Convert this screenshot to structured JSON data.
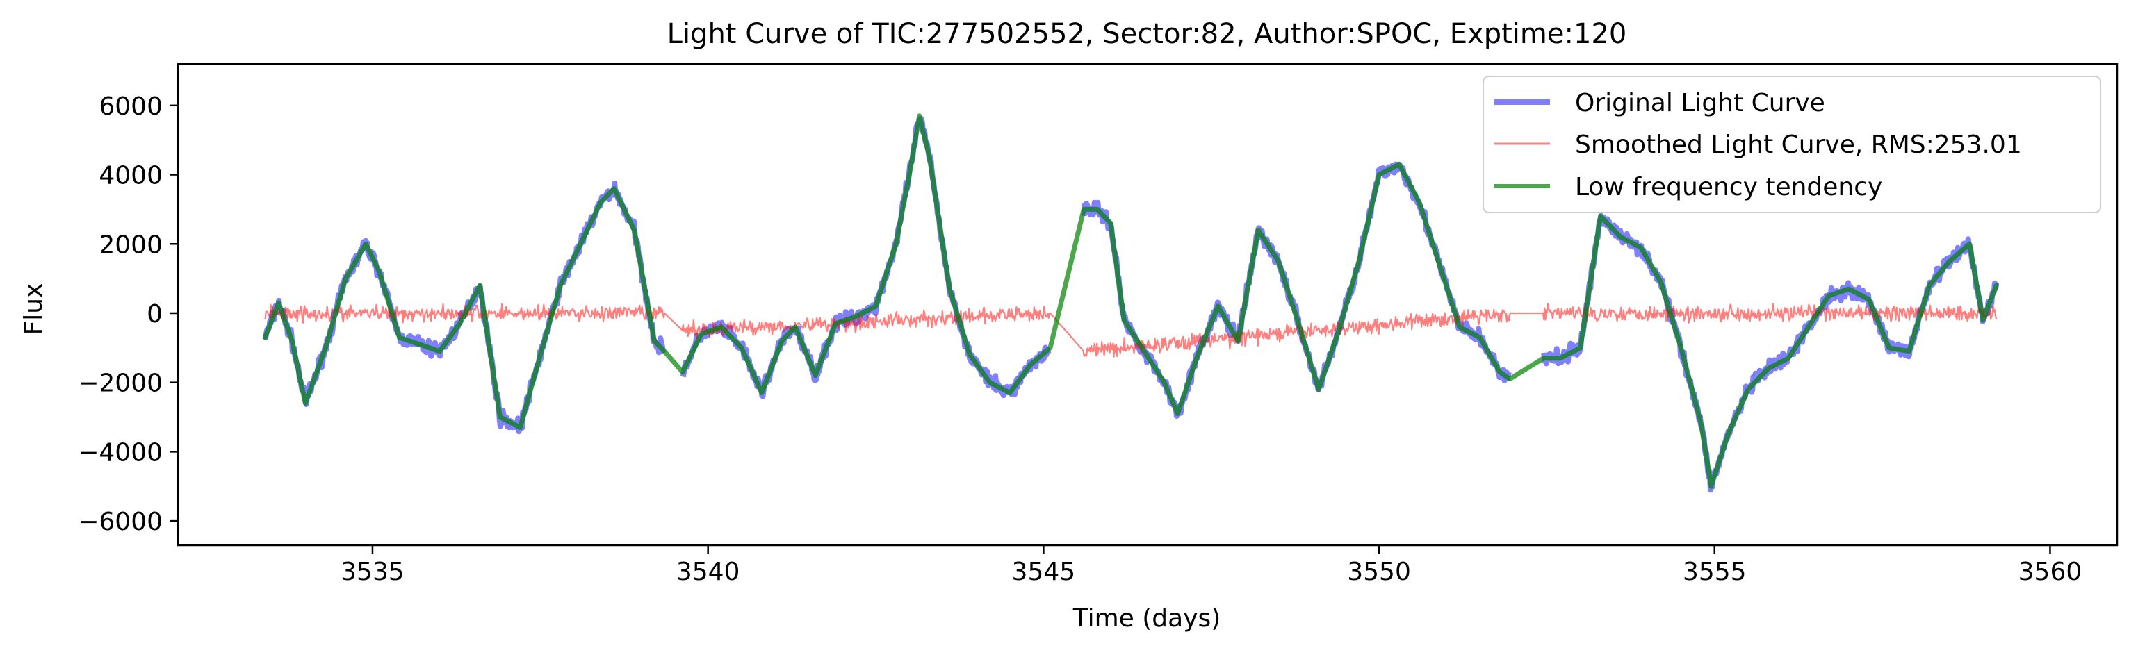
{
  "chart_data": {
    "type": "line",
    "title": "Light Curve of TIC:277502552, Sector:82, Author:SPOC, Exptime:120",
    "xlabel": "Time (days)",
    "ylabel": "Flux",
    "xlim": [
      3532.1,
      3561.0
    ],
    "ylim": [
      -6700,
      7200
    ],
    "x_ticks": [
      3535,
      3540,
      3545,
      3550,
      3555,
      3560
    ],
    "y_ticks": [
      -6000,
      -4000,
      -2000,
      0,
      2000,
      4000,
      6000
    ],
    "x_tick_labels": [
      "3535",
      "3540",
      "3545",
      "3550",
      "3555",
      "3560"
    ],
    "y_tick_labels": [
      "−6000",
      "−4000",
      "−2000",
      "0",
      "2000",
      "4000",
      "6000"
    ],
    "grid": false,
    "legend_position": "top-right",
    "gaps": [
      [
        3539.35,
        3539.62
      ],
      [
        3545.1,
        3545.6
      ],
      [
        3551.95,
        3552.45
      ]
    ],
    "series": [
      {
        "name": "Original Light Curve",
        "color": "#0000ff",
        "alpha": 0.5,
        "style": "thick-noisy",
        "amplitude_noise": 300,
        "x": [
          3533.4,
          3533.6,
          3533.8,
          3534.0,
          3534.3,
          3534.6,
          3534.9,
          3535.1,
          3535.4,
          3535.7,
          3536.0,
          3536.3,
          3536.6,
          3536.9,
          3537.2,
          3537.5,
          3537.8,
          3538.1,
          3538.4,
          3538.6,
          3538.9,
          3539.2,
          3539.35,
          3539.62,
          3539.9,
          3540.2,
          3540.5,
          3540.8,
          3541.1,
          3541.3,
          3541.6,
          3541.9,
          3542.2,
          3542.5,
          3542.8,
          3543.0,
          3543.15,
          3543.3,
          3543.6,
          3543.9,
          3544.2,
          3544.5,
          3544.8,
          3545.1,
          3545.6,
          3545.8,
          3546.0,
          3546.2,
          3546.5,
          3546.8,
          3547.0,
          3547.3,
          3547.6,
          3547.9,
          3548.2,
          3548.5,
          3548.8,
          3549.1,
          3549.4,
          3549.7,
          3550.0,
          3550.3,
          3550.6,
          3550.9,
          3551.2,
          3551.5,
          3551.8,
          3551.95,
          3552.45,
          3552.7,
          3553.0,
          3553.3,
          3553.6,
          3553.9,
          3554.2,
          3554.5,
          3554.8,
          3554.95,
          3555.2,
          3555.5,
          3555.8,
          3556.1,
          3556.4,
          3556.7,
          3557.0,
          3557.3,
          3557.6,
          3557.9,
          3558.2,
          3558.5,
          3558.8,
          3559.0,
          3559.2
        ],
        "y": [
          -700,
          300,
          -800,
          -2600,
          -1000,
          1000,
          2000,
          1200,
          -700,
          -900,
          -1100,
          -300,
          800,
          -3000,
          -3300,
          -1200,
          800,
          2000,
          3200,
          3600,
          2400,
          -800,
          -1100,
          -1700,
          -600,
          -400,
          -1000,
          -2300,
          -800,
          -400,
          -1800,
          -300,
          -100,
          200,
          2000,
          4000,
          5700,
          4500,
          700,
          -1200,
          -2000,
          -2300,
          -1500,
          -1000,
          3000,
          3000,
          2600,
          -200,
          -1100,
          -2000,
          -2900,
          -1200,
          200,
          -800,
          2400,
          1500,
          -300,
          -2200,
          -500,
          1500,
          4000,
          4300,
          3200,
          1400,
          -400,
          -700,
          -1700,
          -1900,
          -1300,
          -1300,
          -1000,
          2800,
          2200,
          1900,
          900,
          -1000,
          -3200,
          -5000,
          -3500,
          -2200,
          -1600,
          -1300,
          -400,
          500,
          700,
          400,
          -1000,
          -1100,
          800,
          1500,
          2000,
          -200,
          800
        ]
      },
      {
        "name": "Smoothed Light Curve, RMS:253.01",
        "color": "#ff0000",
        "alpha": 0.5,
        "style": "thin-noise-band",
        "amplitude_noise": 330,
        "x": [
          3533.4,
          3539.35,
          3539.62,
          3545.1,
          3545.6,
          3551.95,
          3552.45,
          3559.2
        ],
        "y": [
          0,
          0,
          -500,
          0,
          -1100,
          0,
          0,
          0
        ]
      },
      {
        "name": "Low frequency tendency",
        "color": "#008000",
        "alpha": 0.7,
        "style": "thick-smooth",
        "x": [
          3533.4,
          3533.6,
          3533.8,
          3534.0,
          3534.3,
          3534.6,
          3534.9,
          3535.1,
          3535.4,
          3535.7,
          3536.0,
          3536.3,
          3536.6,
          3536.9,
          3537.2,
          3537.5,
          3537.8,
          3538.1,
          3538.4,
          3538.6,
          3538.9,
          3539.2,
          3539.35,
          3539.62,
          3539.9,
          3540.2,
          3540.5,
          3540.8,
          3541.1,
          3541.3,
          3541.6,
          3541.9,
          3542.2,
          3542.5,
          3542.8,
          3543.0,
          3543.15,
          3543.3,
          3543.6,
          3543.9,
          3544.2,
          3544.5,
          3544.8,
          3545.1,
          3545.6,
          3545.8,
          3546.0,
          3546.2,
          3546.5,
          3546.8,
          3547.0,
          3547.3,
          3547.6,
          3547.9,
          3548.2,
          3548.5,
          3548.8,
          3549.1,
          3549.4,
          3549.7,
          3550.0,
          3550.3,
          3550.6,
          3550.9,
          3551.2,
          3551.5,
          3551.8,
          3551.95,
          3552.45,
          3552.7,
          3553.0,
          3553.3,
          3553.6,
          3553.9,
          3554.2,
          3554.5,
          3554.8,
          3554.95,
          3555.2,
          3555.5,
          3555.8,
          3556.1,
          3556.4,
          3556.7,
          3557.0,
          3557.3,
          3557.6,
          3557.9,
          3558.2,
          3558.5,
          3558.8,
          3559.0,
          3559.2
        ],
        "y": [
          -700,
          300,
          -800,
          -2600,
          -1000,
          1000,
          2000,
          1200,
          -700,
          -900,
          -1100,
          -300,
          800,
          -3000,
          -3300,
          -1200,
          800,
          2000,
          3200,
          3600,
          2400,
          -800,
          -1100,
          -1700,
          -600,
          -400,
          -1000,
          -2300,
          -800,
          -400,
          -1800,
          -300,
          -100,
          200,
          2000,
          4000,
          5700,
          4500,
          700,
          -1200,
          -2000,
          -2300,
          -1500,
          -1000,
          3000,
          3000,
          2600,
          -200,
          -1100,
          -2000,
          -2900,
          -1200,
          200,
          -800,
          2400,
          1500,
          -300,
          -2200,
          -500,
          1500,
          4000,
          4300,
          3200,
          1400,
          -400,
          -700,
          -1700,
          -1900,
          -1300,
          -1300,
          -1000,
          2800,
          2200,
          1900,
          900,
          -1000,
          -3200,
          -5000,
          -3500,
          -2200,
          -1600,
          -1300,
          -400,
          500,
          700,
          400,
          -1000,
          -1100,
          800,
          1500,
          2000,
          -200,
          800
        ]
      }
    ],
    "legend": [
      {
        "label": "Original Light Curve",
        "color": "#0000ff",
        "alpha": 0.5
      },
      {
        "label": "Smoothed Light Curve, RMS:253.01",
        "color": "#ff0000",
        "alpha": 0.5
      },
      {
        "label": "Low frequency tendency",
        "color": "#008000",
        "alpha": 0.7
      }
    ]
  }
}
